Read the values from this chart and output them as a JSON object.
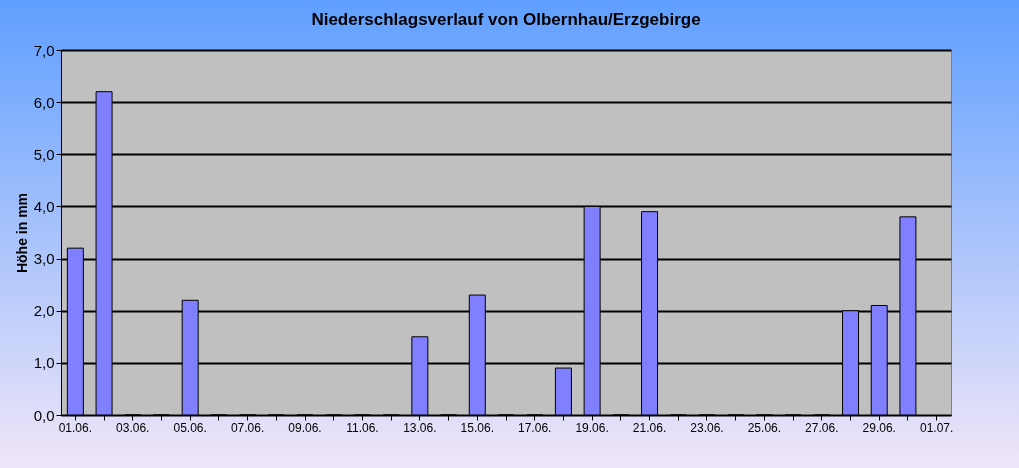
{
  "chart_data": {
    "type": "bar",
    "title": "Niederschlagsverlauf von Olbernhau/Erzgebirge",
    "ylabel": "Höhe in  mm",
    "categories": [
      "01.06.",
      null,
      "03.06.",
      null,
      "05.06.",
      null,
      "07.06.",
      null,
      "09.06.",
      null,
      "11.06.",
      null,
      "13.06.",
      null,
      "15.06.",
      null,
      "17.06.",
      null,
      "19.06.",
      null,
      "21.06.",
      null,
      "23.06.",
      null,
      "25.06.",
      null,
      "27.06.",
      null,
      "29.06.",
      null,
      "01.07."
    ],
    "values": [
      3.2,
      6.2,
      0,
      0,
      2.2,
      0,
      0,
      0,
      0,
      0,
      0,
      0,
      1.5,
      0,
      2.3,
      0,
      0,
      0.9,
      4.0,
      0,
      3.9,
      0,
      0,
      0,
      0,
      0,
      0,
      2.0,
      2.1,
      3.8,
      null
    ],
    "color": "#8080ff",
    "ylim": [
      0,
      7
    ],
    "yticks": [
      {
        "value": 0,
        "label": "0,0"
      },
      {
        "value": 1,
        "label": "1,0"
      },
      {
        "value": 2,
        "label": "2,0"
      },
      {
        "value": 3,
        "label": "3,0"
      },
      {
        "value": 4,
        "label": "4,0"
      },
      {
        "value": 5,
        "label": "5,0"
      },
      {
        "value": 6,
        "label": "6,0"
      },
      {
        "value": 7,
        "label": "7,0"
      }
    ],
    "grid": "y"
  }
}
